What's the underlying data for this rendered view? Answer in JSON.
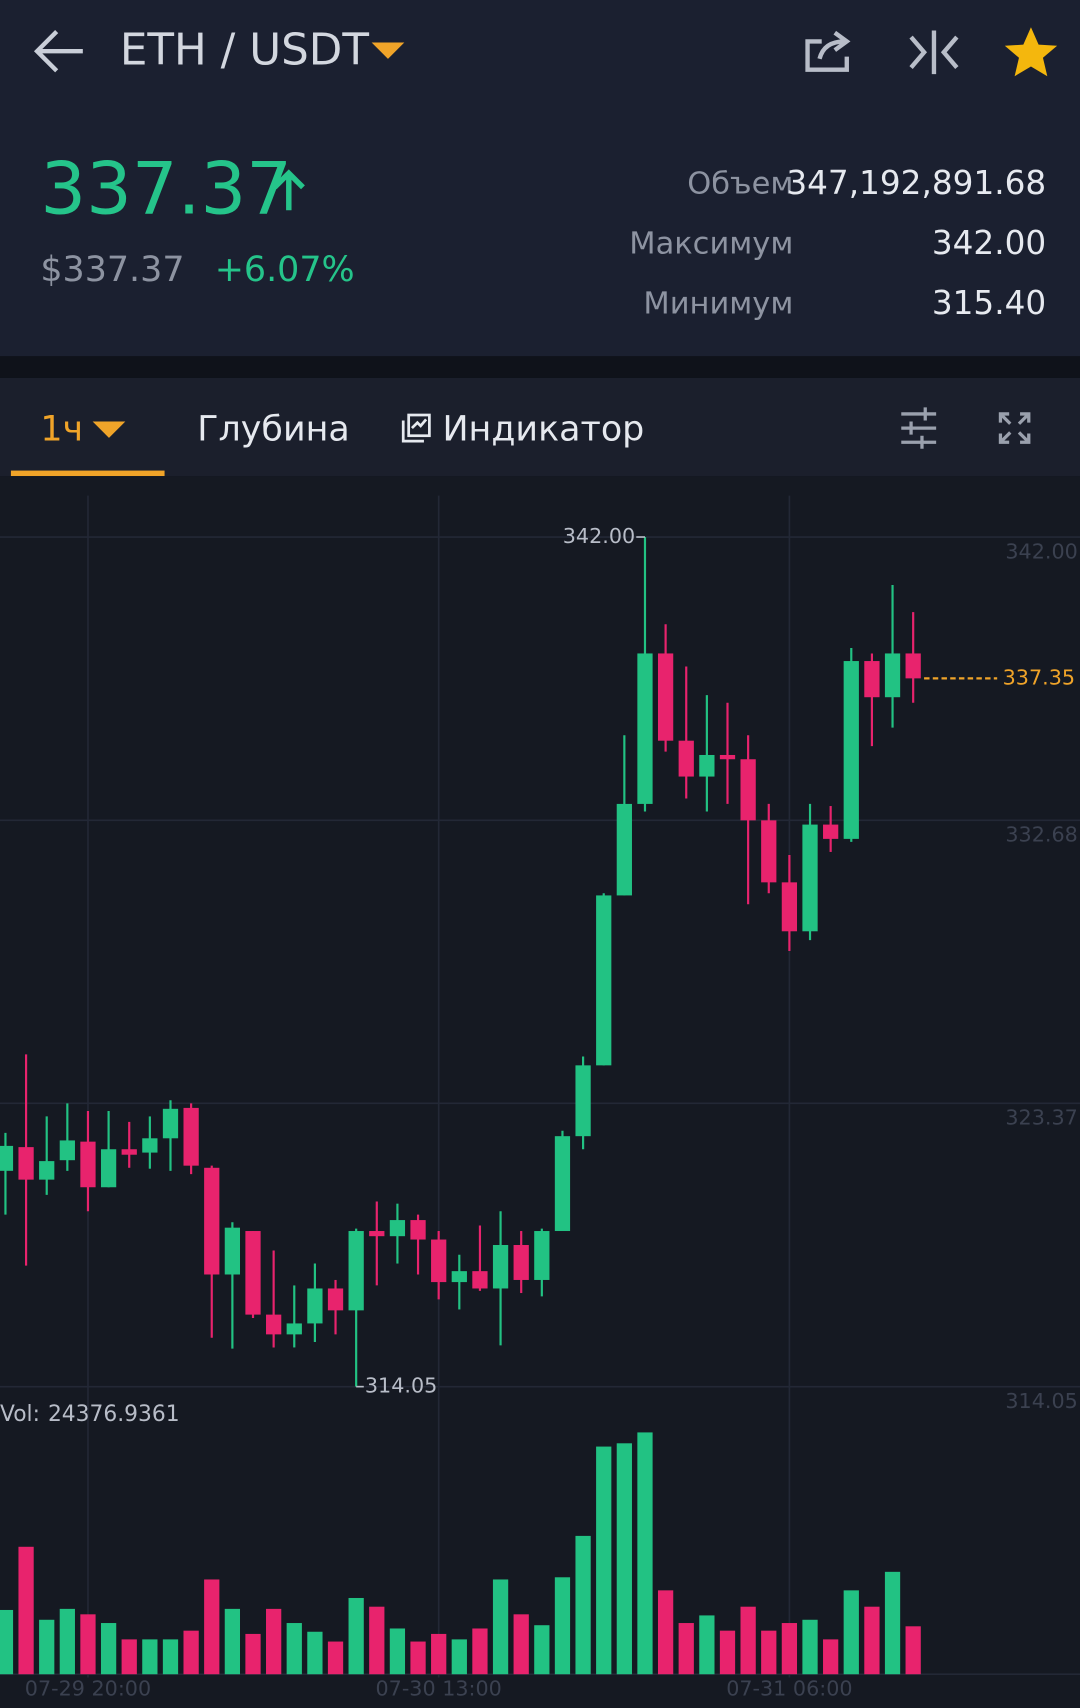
{
  "header": {
    "pair": "ETH / USDT"
  },
  "ticker": {
    "price": "337.37",
    "price_usd": "$337.37",
    "change": "+6.07%",
    "stats": [
      {
        "label": "Объем",
        "value": "347,192,891.68"
      },
      {
        "label": "Максимум",
        "value": "342.00"
      },
      {
        "label": "Минимум",
        "value": "315.40"
      }
    ]
  },
  "tabs": [
    "1ч",
    "Глубина",
    "Индикатор"
  ],
  "chart_data": {
    "type": "candlestick",
    "categories": [
      null,
      null,
      null,
      null,
      "07-29 20:00",
      null,
      null,
      null,
      null,
      null,
      null,
      null,
      null,
      null,
      null,
      null,
      null,
      null,
      null,
      null,
      null,
      "07-30 13:00",
      null,
      null,
      null,
      null,
      null,
      null,
      null,
      null,
      null,
      null,
      null,
      null,
      null,
      null,
      null,
      null,
      "07-31 06:00",
      null,
      null,
      null,
      null,
      null,
      null
    ],
    "open": [
      321.15,
      321.93,
      320.86,
      321.5,
      322.11,
      320.61,
      321.86,
      321.75,
      322.22,
      323.22,
      321.25,
      317.74,
      319.17,
      316.42,
      315.77,
      316.13,
      317.28,
      316.56,
      319.17,
      319.0,
      319.53,
      318.89,
      317.49,
      317.85,
      317.28,
      318.71,
      317.56,
      319.17,
      322.29,
      324.62,
      330.21,
      333.22,
      338.17,
      335.3,
      334.12,
      334.83,
      334.69,
      332.68,
      330.64,
      329.03,
      332.54,
      332.07,
      337.92,
      336.73,
      338.17
    ],
    "high": [
      322.4,
      324.98,
      322.94,
      323.37,
      323.12,
      323.12,
      322.76,
      322.94,
      323.47,
      323.37,
      321.32,
      319.46,
      319.17,
      318.53,
      317.38,
      318.1,
      317.56,
      319.25,
      320.14,
      320.07,
      319.71,
      319.17,
      318.39,
      319.35,
      319.82,
      319.17,
      319.25,
      322.47,
      324.91,
      330.28,
      335.48,
      342.0,
      339.13,
      337.74,
      336.8,
      336.55,
      335.48,
      333.22,
      331.54,
      333.22,
      333.15,
      338.35,
      338.17,
      340.42,
      339.53
    ],
    "low": [
      319.71,
      318.03,
      320.36,
      321.15,
      319.82,
      320.61,
      321.25,
      321.22,
      321.15,
      321.04,
      315.66,
      315.3,
      316.31,
      315.34,
      315.34,
      315.52,
      315.77,
      314.05,
      317.38,
      318.1,
      317.74,
      316.92,
      316.59,
      317.2,
      315.41,
      317.13,
      317.02,
      319.17,
      321.86,
      324.62,
      330.21,
      332.97,
      334.94,
      333.4,
      332.97,
      333.22,
      329.92,
      330.28,
      328.38,
      328.74,
      331.64,
      331.97,
      335.12,
      335.73,
      336.55
    ],
    "close": [
      321.97,
      320.86,
      321.47,
      322.15,
      320.61,
      321.86,
      321.68,
      322.22,
      323.19,
      321.32,
      317.74,
      319.28,
      316.42,
      315.77,
      316.13,
      317.28,
      316.56,
      319.17,
      319.0,
      319.53,
      318.89,
      317.49,
      317.85,
      317.28,
      318.71,
      317.56,
      319.17,
      322.29,
      324.62,
      330.21,
      333.22,
      338.17,
      335.3,
      334.12,
      334.83,
      334.69,
      332.68,
      330.64,
      329.03,
      332.54,
      332.07,
      337.92,
      336.73,
      338.17,
      337.35
    ],
    "up_color": "#22c283",
    "down_color": "#e8236d",
    "ylim": [
      314.05,
      342.0
    ],
    "yticks": [
      {
        "value": 342.0,
        "label": "342.00"
      },
      {
        "value": 332.68,
        "label": "332.68"
      },
      {
        "value": 323.37,
        "label": "323.37"
      },
      {
        "value": 314.05,
        "label": "314.05"
      }
    ],
    "annotations": {
      "high": "342.00",
      "low": "314.05",
      "last": "337.35"
    },
    "volume": {
      "label": "Vol:",
      "values": [
        32686,
        64818,
        27700,
        33240,
        30470,
        26038,
        17728,
        17728,
        17728,
        22160,
        48198,
        33240,
        20498,
        33240,
        26038,
        21606,
        16620,
        38780,
        34348,
        23268,
        16620,
        20498,
        17728,
        23268,
        48198,
        30470,
        24930,
        49306,
        70358,
        115786,
        117448,
        122988,
        42658,
        26038,
        29916,
        22160,
        34348,
        22160,
        26038,
        27700,
        17728,
        42658,
        34348,
        52076,
        24376.9361
      ]
    }
  }
}
